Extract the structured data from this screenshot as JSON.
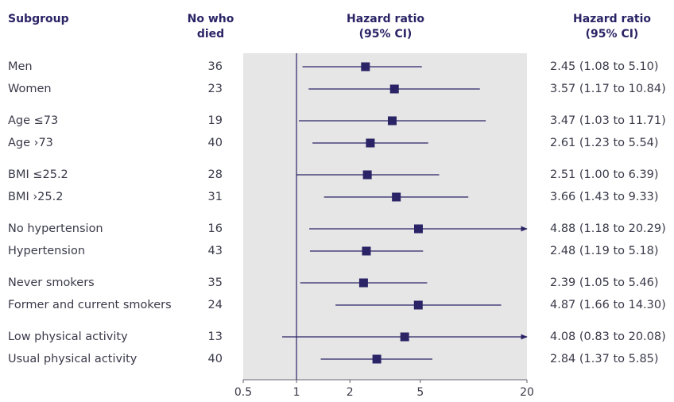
{
  "headers": {
    "subgroup": "Subgroup",
    "n_line1": "No who",
    "n_line2": "died",
    "hr_line1": "Hazard ratio",
    "hr_line2": "(95% CI)",
    "ci_line1": "Hazard ratio",
    "ci_line2": "(95% CI)"
  },
  "colors": {
    "header": "#2a2466",
    "marker": "#2a2466",
    "line": "#2a2466",
    "panel": "#e6e6e6",
    "text": "#3a3a4a"
  },
  "chart_data": {
    "type": "forest",
    "xscale": "log",
    "xlim": [
      0.5,
      20
    ],
    "xticks": [
      0.5,
      1,
      2,
      5,
      20
    ],
    "xtick_labels": [
      "0.5",
      "1",
      "2",
      "5",
      "20"
    ],
    "reference_line": 1,
    "rows": [
      {
        "label": "Men",
        "n": "36",
        "hr": 2.45,
        "lo": 1.08,
        "hi": 5.1,
        "ci_text": "2.45 (1.08 to 5.10)",
        "arrow": false
      },
      {
        "label": "Women",
        "n": "23",
        "hr": 3.57,
        "lo": 1.17,
        "hi": 10.84,
        "ci_text": "3.57 (1.17 to 10.84)",
        "arrow": false
      },
      {
        "label": "Age ≤73",
        "n": "19",
        "hr": 3.47,
        "lo": 1.03,
        "hi": 11.71,
        "ci_text": "3.47 (1.03 to 11.71)",
        "arrow": false
      },
      {
        "label": "Age ›73",
        "n": "40",
        "hr": 2.61,
        "lo": 1.23,
        "hi": 5.54,
        "ci_text": "2.61 (1.23 to 5.54)",
        "arrow": false
      },
      {
        "label": "BMI ≤25.2",
        "n": "28",
        "hr": 2.51,
        "lo": 1.0,
        "hi": 6.39,
        "ci_text": "2.51 (1.00 to 6.39)",
        "arrow": false
      },
      {
        "label": "BMI ›25.2",
        "n": "31",
        "hr": 3.66,
        "lo": 1.43,
        "hi": 9.33,
        "ci_text": "3.66 (1.43 to 9.33)",
        "arrow": false
      },
      {
        "label": "No hypertension",
        "n": "16",
        "hr": 4.88,
        "lo": 1.18,
        "hi": 20.29,
        "ci_text": "4.88 (1.18 to 20.29)",
        "arrow": true
      },
      {
        "label": "Hypertension",
        "n": "43",
        "hr": 2.48,
        "lo": 1.19,
        "hi": 5.18,
        "ci_text": "2.48 (1.19 to 5.18)",
        "arrow": false
      },
      {
        "label": "Never smokers",
        "n": "35",
        "hr": 2.39,
        "lo": 1.05,
        "hi": 5.46,
        "ci_text": "2.39 (1.05 to 5.46)",
        "arrow": false
      },
      {
        "label": "Former and current smokers",
        "n": "24",
        "hr": 4.87,
        "lo": 1.66,
        "hi": 14.3,
        "ci_text": "4.87 (1.66 to 14.30)",
        "arrow": false
      },
      {
        "label": "Low physical activity",
        "n": "13",
        "hr": 4.08,
        "lo": 0.83,
        "hi": 20.08,
        "ci_text": "4.08 (0.83 to 20.08)",
        "arrow": true
      },
      {
        "label": "Usual physical activity",
        "n": "40",
        "hr": 2.84,
        "lo": 1.37,
        "hi": 5.85,
        "ci_text": "2.84 (1.37 to 5.85)",
        "arrow": false
      }
    ]
  }
}
